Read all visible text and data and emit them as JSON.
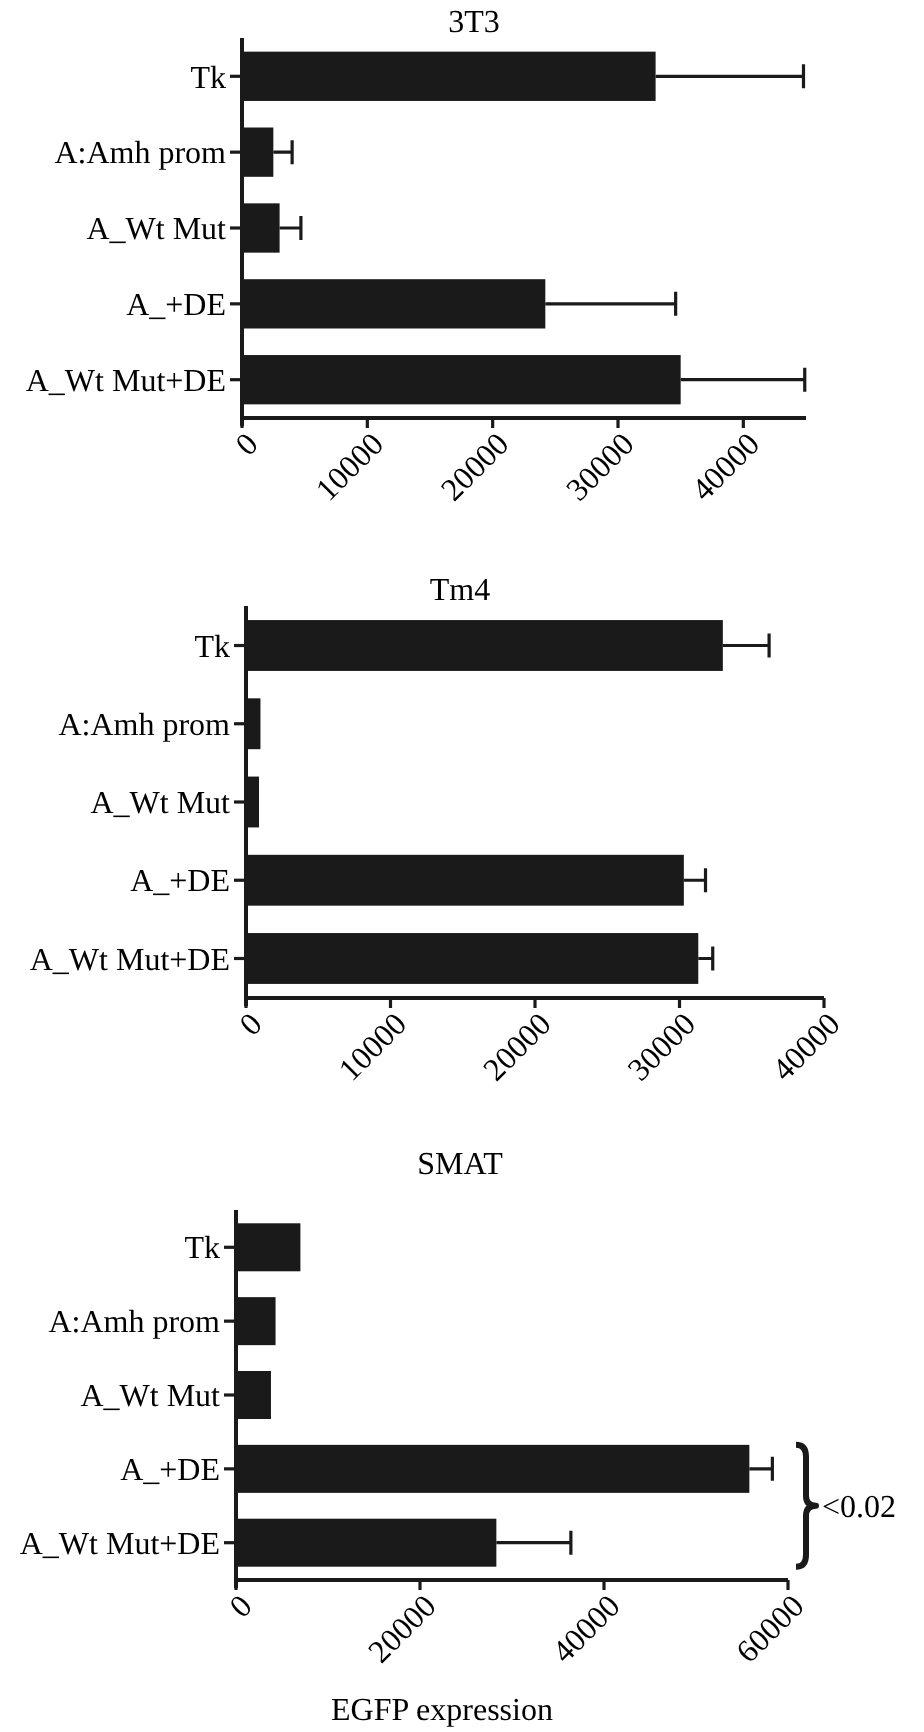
{
  "chart_data": [
    {
      "type": "bar",
      "orientation": "horizontal",
      "title": "3T3",
      "categories": [
        "Tk",
        "A:Amh prom",
        "A_Wt Mut",
        "A_+DE",
        "A_Wt Mut+DE"
      ],
      "values": [
        33000,
        2500,
        3000,
        24200,
        35000
      ],
      "errors": [
        11800,
        1500,
        1700,
        10400,
        9900
      ],
      "color": "#1a1a1a",
      "xlim": [
        0,
        45000
      ],
      "xticks": [
        0,
        10000,
        20000,
        30000,
        40000
      ]
    },
    {
      "type": "bar",
      "orientation": "horizontal",
      "title": "Tm4",
      "categories": [
        "Tk",
        "A:Amh prom",
        "A_Wt Mut",
        "A_+DE",
        "A_Wt Mut+DE"
      ],
      "values": [
        33000,
        1000,
        900,
        30300,
        31300
      ],
      "errors": [
        3200,
        null,
        null,
        1500,
        1000
      ],
      "color": "#1a1a1a",
      "xlim": [
        0,
        40000
      ],
      "xticks": [
        0,
        10000,
        20000,
        30000,
        40000
      ]
    },
    {
      "type": "bar",
      "orientation": "horizontal",
      "title": "SMAT",
      "xlabel": "EGFP expression",
      "categories": [
        "Tk",
        "A:Amh prom",
        "A_Wt Mut",
        "A_+DE",
        "A_Wt Mut+DE"
      ],
      "values": [
        7000,
        4300,
        3800,
        55800,
        28300
      ],
      "errors": [
        null,
        null,
        null,
        2500,
        8100
      ],
      "color": "#1a1a1a",
      "xlim": [
        0,
        60000
      ],
      "xticks": [
        0,
        20000,
        40000,
        60000
      ],
      "annotations": [
        "<0.02"
      ]
    }
  ]
}
